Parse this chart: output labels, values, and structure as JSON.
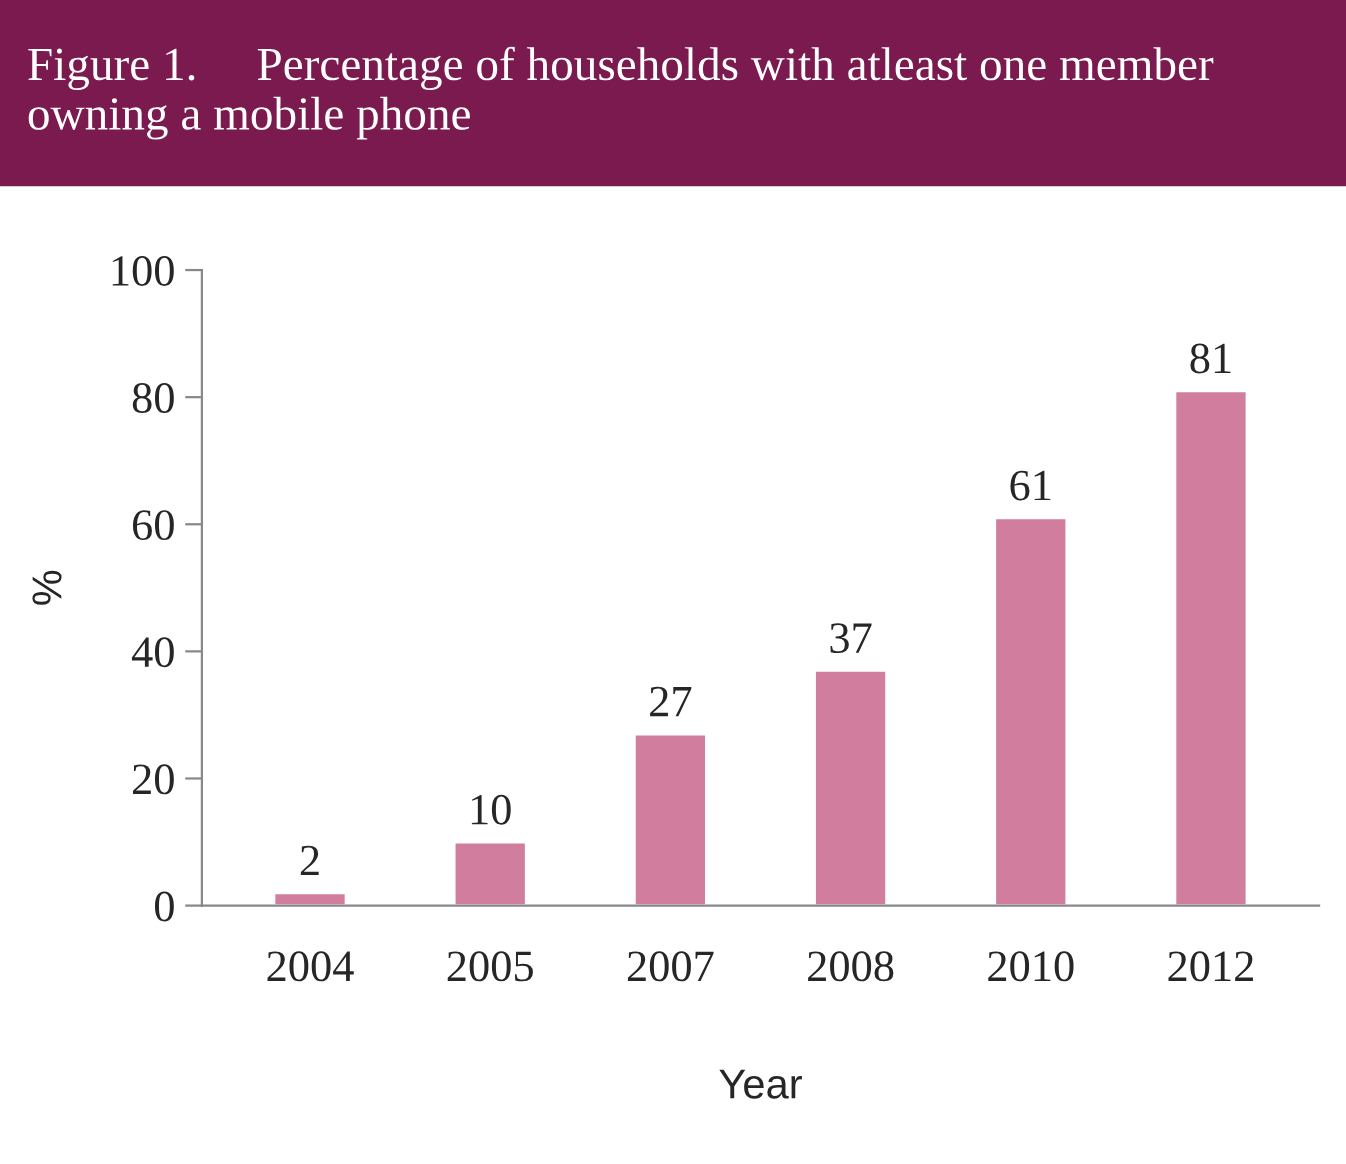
{
  "chart_data": {
    "type": "bar",
    "title": "Figure 1.     Percentage of households with atleast one member owning a mobile phone",
    "xlabel": "Year",
    "ylabel": "%",
    "categories": [
      "2004",
      "2005",
      "2007",
      "2008",
      "2010",
      "2012"
    ],
    "values": [
      2,
      10,
      27,
      37,
      61,
      81
    ],
    "color": "#d07d9e",
    "ylim": [
      0,
      100
    ],
    "yticks": [
      0,
      20,
      40,
      60,
      80,
      100
    ],
    "grid": false,
    "data_labels": true
  }
}
